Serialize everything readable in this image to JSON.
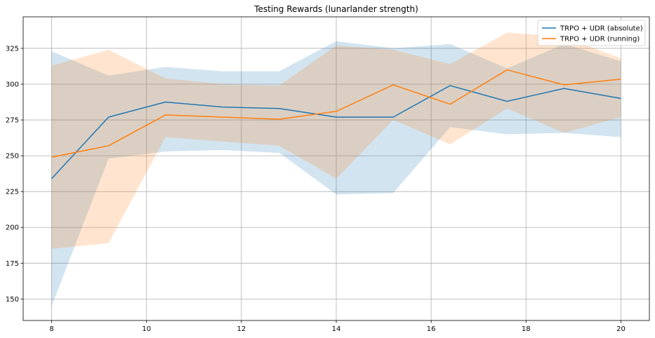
{
  "chart_data": {
    "type": "line",
    "title": "Testing Rewards (lunarlander strength)",
    "xlabel": "",
    "ylabel": "",
    "x": [
      8,
      9.2,
      10.4,
      11.6,
      12.8,
      14,
      15.2,
      16.4,
      17.6,
      18.8,
      20
    ],
    "xlim": [
      7.4,
      20.6
    ],
    "ylim": [
      135,
      347
    ],
    "xticks": [
      8,
      10,
      12,
      14,
      16,
      18,
      20
    ],
    "yticks": [
      150,
      175,
      200,
      225,
      250,
      275,
      300,
      325
    ],
    "grid": true,
    "legend_position": "upper-right",
    "series": [
      {
        "name": "TRPO + UDR (absolute)",
        "color": "#1f77b4",
        "band_color": "#1f77b4",
        "values": [
          234,
          277,
          287.5,
          284,
          283,
          277,
          277,
          299,
          288,
          297,
          290
        ],
        "band_lower": [
          145,
          248,
          253,
          254,
          252,
          223,
          224,
          270,
          265,
          266,
          263
        ],
        "band_upper": [
          323,
          306,
          312,
          309,
          309,
          330,
          325,
          328,
          311,
          328,
          316
        ]
      },
      {
        "name": "TRPO + UDR (running)",
        "color": "#ff7f0e",
        "band_color": "#ff7f0e",
        "values": [
          249,
          257,
          278.5,
          277,
          275.5,
          281,
          299.5,
          286,
          310,
          299.5,
          303.5
        ],
        "band_lower": [
          185,
          189,
          263,
          260,
          257,
          234,
          275,
          258,
          283,
          266,
          277
        ],
        "band_upper": [
          313,
          324,
          304,
          300,
          299,
          327,
          324,
          314,
          336,
          333,
          318
        ]
      }
    ]
  }
}
